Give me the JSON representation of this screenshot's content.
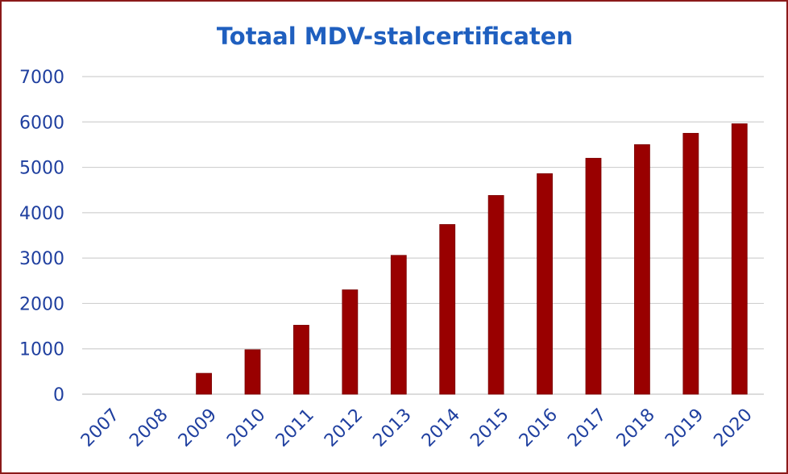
{
  "chart_data": {
    "type": "bar",
    "title": "Totaal MDV-stalcertificaten",
    "xlabel": "",
    "ylabel": "",
    "categories": [
      "2007",
      "2008",
      "2009",
      "2010",
      "2011",
      "2012",
      "2013",
      "2014",
      "2015",
      "2016",
      "2017",
      "2018",
      "2019",
      "2020"
    ],
    "values": [
      0,
      0,
      460,
      980,
      1520,
      2300,
      3060,
      3740,
      4380,
      4860,
      5200,
      5500,
      5750,
      5960
    ],
    "ylim": [
      0,
      7000
    ],
    "yticks": [
      "0",
      "1000",
      "2000",
      "3000",
      "4000",
      "5000",
      "6000",
      "7000"
    ],
    "grid": true,
    "legend": "none",
    "colors": {
      "bar": "#990000",
      "title": "#1f5fbf",
      "ticks": "#1f3f9f",
      "border": "#8b1a1a"
    }
  }
}
